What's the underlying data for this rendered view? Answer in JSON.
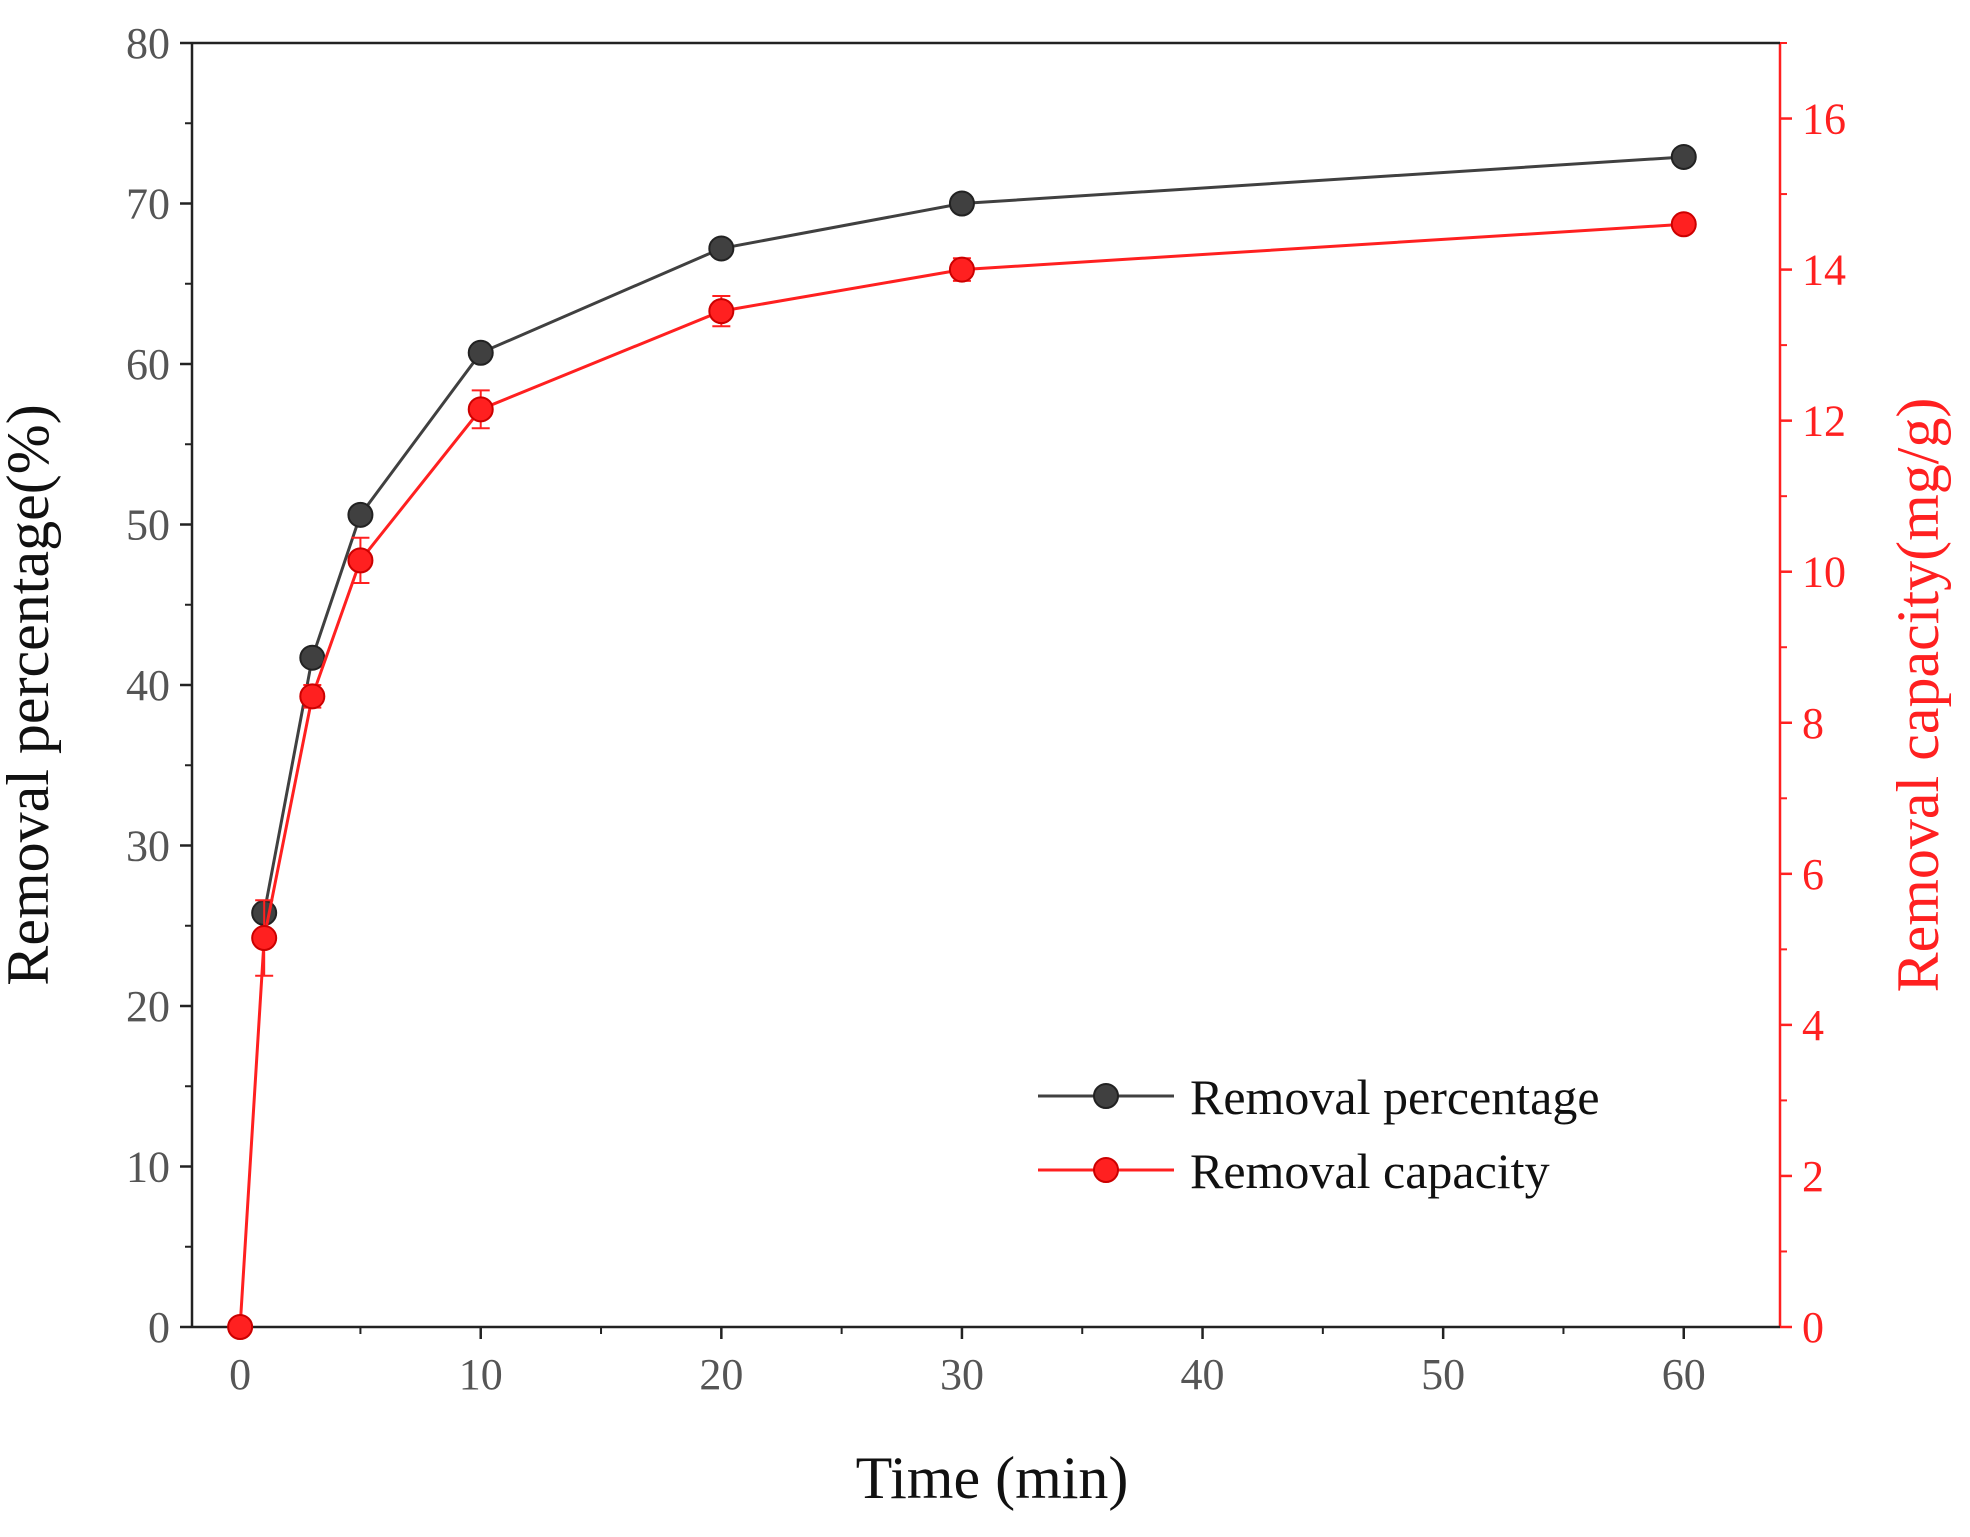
{
  "chart_data": {
    "type": "line",
    "title": "",
    "xlabel": "Time (min)",
    "ylabel_left": "Removal percentage(%)",
    "ylabel_right": "Removal capacity(mg/g)",
    "xlim": [
      -2,
      64
    ],
    "ylim_left": [
      0,
      80
    ],
    "ylim_right": [
      0,
      17
    ],
    "x_ticks": [
      0,
      10,
      20,
      30,
      40,
      50,
      60
    ],
    "y_left_ticks": [
      0,
      10,
      20,
      30,
      40,
      50,
      60,
      70,
      80
    ],
    "y_right_ticks": [
      0,
      2,
      4,
      6,
      8,
      10,
      12,
      14,
      16
    ],
    "grid": false,
    "legend_position": "bottom-right",
    "series": [
      {
        "name": "Removal percentage",
        "axis": "left",
        "color": "#404040",
        "x": [
          1,
          3,
          5,
          10,
          20,
          30,
          60
        ],
        "values": [
          25.8,
          41.7,
          50.6,
          60.7,
          67.2,
          70.0,
          72.9
        ]
      },
      {
        "name": "Removal capacity",
        "axis": "right",
        "color": "#ff2020",
        "x": [
          0,
          1,
          3,
          5,
          10,
          20,
          30,
          60
        ],
        "values": [
          0,
          5.15,
          8.35,
          10.15,
          12.15,
          13.45,
          14.0,
          14.6
        ],
        "error": [
          0,
          0.5,
          0.15,
          0.3,
          0.25,
          0.2,
          0.15,
          0.1
        ]
      }
    ]
  }
}
